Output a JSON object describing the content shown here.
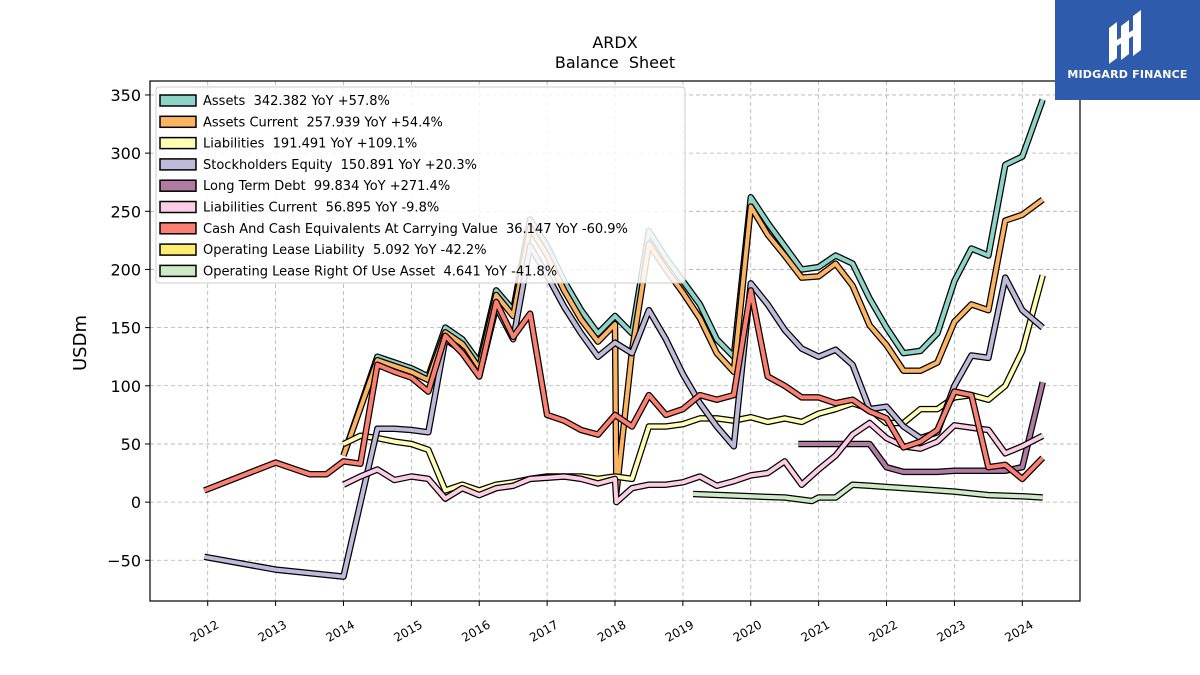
{
  "chart_data": {
    "type": "line",
    "title": "ARDX",
    "subtitle": "Balance  Sheet",
    "ylabel": "USDm",
    "xlabel": "",
    "ylim": [
      -85,
      362
    ],
    "xlim": [
      2011.15,
      2024.85
    ],
    "x_ticks": [
      2012,
      2013,
      2014,
      2015,
      2016,
      2017,
      2018,
      2019,
      2020,
      2021,
      2022,
      2023,
      2024
    ],
    "y_ticks": [
      -50,
      0,
      50,
      100,
      150,
      200,
      250,
      300,
      350
    ],
    "grid": true,
    "legend_position": "top-left",
    "series": [
      {
        "name": "Assets  342.382 YoY +57.8%",
        "color": "#8dd3c7",
        "points": [
          [
            2014.0,
            40
          ],
          [
            2014.5,
            125
          ],
          [
            2014.75,
            120
          ],
          [
            2015.0,
            115
          ],
          [
            2015.25,
            108
          ],
          [
            2015.5,
            150
          ],
          [
            2015.75,
            140
          ],
          [
            2016.0,
            120
          ],
          [
            2016.25,
            182
          ],
          [
            2016.5,
            165
          ],
          [
            2016.75,
            243
          ],
          [
            2017.0,
            220
          ],
          [
            2017.25,
            190
          ],
          [
            2017.5,
            165
          ],
          [
            2017.75,
            145
          ],
          [
            2018.0,
            160
          ],
          [
            2018.25,
            145
          ],
          [
            2018.5,
            233
          ],
          [
            2018.75,
            210
          ],
          [
            2019.0,
            190
          ],
          [
            2019.25,
            170
          ],
          [
            2019.5,
            140
          ],
          [
            2019.75,
            125
          ],
          [
            2020.0,
            262
          ],
          [
            2020.25,
            240
          ],
          [
            2020.5,
            220
          ],
          [
            2020.75,
            200
          ],
          [
            2021.0,
            202
          ],
          [
            2021.25,
            212
          ],
          [
            2021.5,
            205
          ],
          [
            2021.75,
            175
          ],
          [
            2022.0,
            150
          ],
          [
            2022.25,
            128
          ],
          [
            2022.5,
            130
          ],
          [
            2022.75,
            145
          ],
          [
            2023.0,
            190
          ],
          [
            2023.25,
            218
          ],
          [
            2023.5,
            212
          ],
          [
            2023.75,
            290
          ],
          [
            2024.0,
            297
          ],
          [
            2024.3,
            346
          ]
        ]
      },
      {
        "name": "Assets Current  257.939 YoY +54.4%",
        "color": "#fdb462",
        "points": [
          [
            2014.0,
            40
          ],
          [
            2014.5,
            122
          ],
          [
            2014.75,
            117
          ],
          [
            2015.0,
            112
          ],
          [
            2015.25,
            105
          ],
          [
            2015.5,
            146
          ],
          [
            2015.75,
            136
          ],
          [
            2016.0,
            115
          ],
          [
            2016.25,
            178
          ],
          [
            2016.5,
            160
          ],
          [
            2016.75,
            236
          ],
          [
            2017.0,
            212
          ],
          [
            2017.25,
            182
          ],
          [
            2017.5,
            157
          ],
          [
            2017.75,
            138
          ],
          [
            2018.0,
            153
          ],
          [
            2018.02,
            8
          ],
          [
            2018.25,
            130
          ],
          [
            2018.5,
            222
          ],
          [
            2018.75,
            200
          ],
          [
            2019.0,
            180
          ],
          [
            2019.25,
            158
          ],
          [
            2019.5,
            128
          ],
          [
            2019.75,
            112
          ],
          [
            2020.0,
            254
          ],
          [
            2020.25,
            230
          ],
          [
            2020.5,
            212
          ],
          [
            2020.75,
            193
          ],
          [
            2021.0,
            194
          ],
          [
            2021.25,
            205
          ],
          [
            2021.5,
            186
          ],
          [
            2021.75,
            152
          ],
          [
            2022.0,
            135
          ],
          [
            2022.25,
            113
          ],
          [
            2022.5,
            113
          ],
          [
            2022.75,
            120
          ],
          [
            2023.0,
            155
          ],
          [
            2023.25,
            170
          ],
          [
            2023.5,
            165
          ],
          [
            2023.75,
            242
          ],
          [
            2024.0,
            247
          ],
          [
            2024.3,
            260
          ]
        ]
      },
      {
        "name": "Liabilities  191.491 YoY +109.1%",
        "color": "#ffffb3",
        "points": [
          [
            2014.0,
            50
          ],
          [
            2014.25,
            57
          ],
          [
            2014.5,
            55
          ],
          [
            2014.75,
            52
          ],
          [
            2015.0,
            50
          ],
          [
            2015.25,
            45
          ],
          [
            2015.5,
            10
          ],
          [
            2015.75,
            15
          ],
          [
            2016.0,
            10
          ],
          [
            2016.25,
            15
          ],
          [
            2016.5,
            17
          ],
          [
            2016.75,
            20
          ],
          [
            2017.0,
            22
          ],
          [
            2017.25,
            22
          ],
          [
            2017.5,
            22
          ],
          [
            2017.75,
            20
          ],
          [
            2018.0,
            22
          ],
          [
            2018.25,
            20
          ],
          [
            2018.5,
            65
          ],
          [
            2018.75,
            65
          ],
          [
            2019.0,
            67
          ],
          [
            2019.25,
            72
          ],
          [
            2019.5,
            72
          ],
          [
            2019.75,
            70
          ],
          [
            2020.0,
            73
          ],
          [
            2020.25,
            69
          ],
          [
            2020.5,
            72
          ],
          [
            2020.75,
            69
          ],
          [
            2021.0,
            76
          ],
          [
            2021.25,
            80
          ],
          [
            2021.5,
            85
          ],
          [
            2021.75,
            80
          ],
          [
            2022.0,
            68
          ],
          [
            2022.25,
            68
          ],
          [
            2022.5,
            80
          ],
          [
            2022.75,
            80
          ],
          [
            2023.0,
            90
          ],
          [
            2023.25,
            92
          ],
          [
            2023.5,
            88
          ],
          [
            2023.75,
            100
          ],
          [
            2024.0,
            130
          ],
          [
            2024.3,
            195
          ]
        ]
      },
      {
        "name": "Stockholders Equity  150.891 YoY +20.3%",
        "color": "#bebada",
        "points": [
          [
            2011.95,
            -47
          ],
          [
            2013.0,
            -58
          ],
          [
            2014.0,
            -64
          ],
          [
            2014.5,
            63
          ],
          [
            2014.75,
            63
          ],
          [
            2015.0,
            62
          ],
          [
            2015.25,
            60
          ],
          [
            2015.5,
            140
          ],
          [
            2015.75,
            130
          ],
          [
            2016.0,
            108
          ],
          [
            2016.25,
            168
          ],
          [
            2016.5,
            140
          ],
          [
            2016.75,
            220
          ],
          [
            2017.0,
            195
          ],
          [
            2017.25,
            168
          ],
          [
            2017.5,
            145
          ],
          [
            2017.75,
            125
          ],
          [
            2018.0,
            137
          ],
          [
            2018.25,
            128
          ],
          [
            2018.5,
            165
          ],
          [
            2018.75,
            140
          ],
          [
            2019.0,
            110
          ],
          [
            2019.25,
            85
          ],
          [
            2019.5,
            65
          ],
          [
            2019.75,
            48
          ],
          [
            2020.0,
            188
          ],
          [
            2020.25,
            170
          ],
          [
            2020.5,
            148
          ],
          [
            2020.75,
            132
          ],
          [
            2021.0,
            125
          ],
          [
            2021.25,
            131
          ],
          [
            2021.5,
            118
          ],
          [
            2021.75,
            80
          ],
          [
            2022.0,
            82
          ],
          [
            2022.25,
            65
          ],
          [
            2022.5,
            55
          ],
          [
            2022.75,
            60
          ],
          [
            2023.0,
            100
          ],
          [
            2023.25,
            126
          ],
          [
            2023.5,
            124
          ],
          [
            2023.75,
            193
          ],
          [
            2024.0,
            165
          ],
          [
            2024.3,
            150
          ]
        ]
      },
      {
        "name": "Long Term Debt  99.834 YoY +271.4%",
        "color": "#b07aa1",
        "points": [
          [
            2020.7,
            50
          ],
          [
            2021.0,
            50
          ],
          [
            2021.25,
            50
          ],
          [
            2021.5,
            50
          ],
          [
            2021.75,
            50
          ],
          [
            2022.0,
            30
          ],
          [
            2022.25,
            26
          ],
          [
            2022.5,
            26
          ],
          [
            2022.75,
            26
          ],
          [
            2023.0,
            27
          ],
          [
            2023.25,
            27
          ],
          [
            2023.5,
            27
          ],
          [
            2023.75,
            27
          ],
          [
            2024.0,
            30
          ],
          [
            2024.3,
            103
          ]
        ]
      },
      {
        "name": "Liabilities Current  56.895 YoY -9.8%",
        "color": "#fccde5",
        "points": [
          [
            2014.0,
            15
          ],
          [
            2014.25,
            22
          ],
          [
            2014.5,
            28
          ],
          [
            2014.75,
            19
          ],
          [
            2015.0,
            22
          ],
          [
            2015.25,
            20
          ],
          [
            2015.5,
            3
          ],
          [
            2015.75,
            12
          ],
          [
            2016.0,
            6
          ],
          [
            2016.25,
            12
          ],
          [
            2016.5,
            14
          ],
          [
            2016.75,
            20
          ],
          [
            2017.0,
            21
          ],
          [
            2017.25,
            22
          ],
          [
            2017.5,
            20
          ],
          [
            2017.75,
            16
          ],
          [
            2018.0,
            20
          ],
          [
            2018.02,
            0
          ],
          [
            2018.25,
            12
          ],
          [
            2018.5,
            15
          ],
          [
            2018.75,
            15
          ],
          [
            2019.0,
            17
          ],
          [
            2019.25,
            22
          ],
          [
            2019.5,
            14
          ],
          [
            2019.75,
            18
          ],
          [
            2020.0,
            23
          ],
          [
            2020.25,
            25
          ],
          [
            2020.5,
            35
          ],
          [
            2020.75,
            15
          ],
          [
            2021.0,
            28
          ],
          [
            2021.25,
            40
          ],
          [
            2021.5,
            58
          ],
          [
            2021.75,
            68
          ],
          [
            2022.0,
            55
          ],
          [
            2022.25,
            48
          ],
          [
            2022.5,
            46
          ],
          [
            2022.75,
            52
          ],
          [
            2023.0,
            66
          ],
          [
            2023.25,
            64
          ],
          [
            2023.5,
            62
          ],
          [
            2023.75,
            42
          ],
          [
            2024.0,
            48
          ],
          [
            2024.3,
            57
          ]
        ]
      },
      {
        "name": "Cash And Cash Equivalents At Carrying Value  36.147 YoY -60.9%",
        "color": "#fb8072",
        "points": [
          [
            2011.95,
            10
          ],
          [
            2013.0,
            34
          ],
          [
            2013.5,
            24
          ],
          [
            2013.75,
            24
          ],
          [
            2014.0,
            35
          ],
          [
            2014.25,
            33
          ],
          [
            2014.5,
            118
          ],
          [
            2014.75,
            112
          ],
          [
            2015.0,
            107
          ],
          [
            2015.25,
            95
          ],
          [
            2015.5,
            143
          ],
          [
            2015.75,
            128
          ],
          [
            2016.0,
            108
          ],
          [
            2016.25,
            172
          ],
          [
            2016.5,
            142
          ],
          [
            2016.75,
            162
          ],
          [
            2017.0,
            75
          ],
          [
            2017.25,
            70
          ],
          [
            2017.5,
            62
          ],
          [
            2017.75,
            58
          ],
          [
            2018.0,
            75
          ],
          [
            2018.25,
            65
          ],
          [
            2018.5,
            92
          ],
          [
            2018.75,
            75
          ],
          [
            2019.0,
            80
          ],
          [
            2019.25,
            92
          ],
          [
            2019.5,
            88
          ],
          [
            2019.75,
            92
          ],
          [
            2020.0,
            182
          ],
          [
            2020.25,
            108
          ],
          [
            2020.5,
            100
          ],
          [
            2020.75,
            90
          ],
          [
            2021.0,
            90
          ],
          [
            2021.25,
            85
          ],
          [
            2021.5,
            88
          ],
          [
            2021.75,
            78
          ],
          [
            2022.0,
            72
          ],
          [
            2022.25,
            47
          ],
          [
            2022.5,
            52
          ],
          [
            2022.75,
            62
          ],
          [
            2023.0,
            95
          ],
          [
            2023.25,
            92
          ],
          [
            2023.5,
            30
          ],
          [
            2023.75,
            32
          ],
          [
            2024.0,
            20
          ],
          [
            2024.3,
            38
          ]
        ]
      },
      {
        "name": "Operating Lease Liability  5.092 YoY -42.2%",
        "color": "#ffed6f",
        "points": []
      },
      {
        "name": "Operating Lease Right Of Use Asset  4.641 YoY -41.8%",
        "color": "#ccebc5",
        "points": [
          [
            2019.15,
            7
          ],
          [
            2020.0,
            5
          ],
          [
            2020.5,
            4
          ],
          [
            2020.9,
            1
          ],
          [
            2021.0,
            4
          ],
          [
            2021.25,
            4
          ],
          [
            2021.5,
            15
          ],
          [
            2021.75,
            14
          ],
          [
            2022.0,
            13
          ],
          [
            2022.5,
            11
          ],
          [
            2023.0,
            9
          ],
          [
            2023.5,
            6
          ],
          [
            2024.0,
            5
          ],
          [
            2024.3,
            4
          ]
        ]
      }
    ]
  },
  "logo": {
    "text": "MIDGARD FINANCE"
  }
}
